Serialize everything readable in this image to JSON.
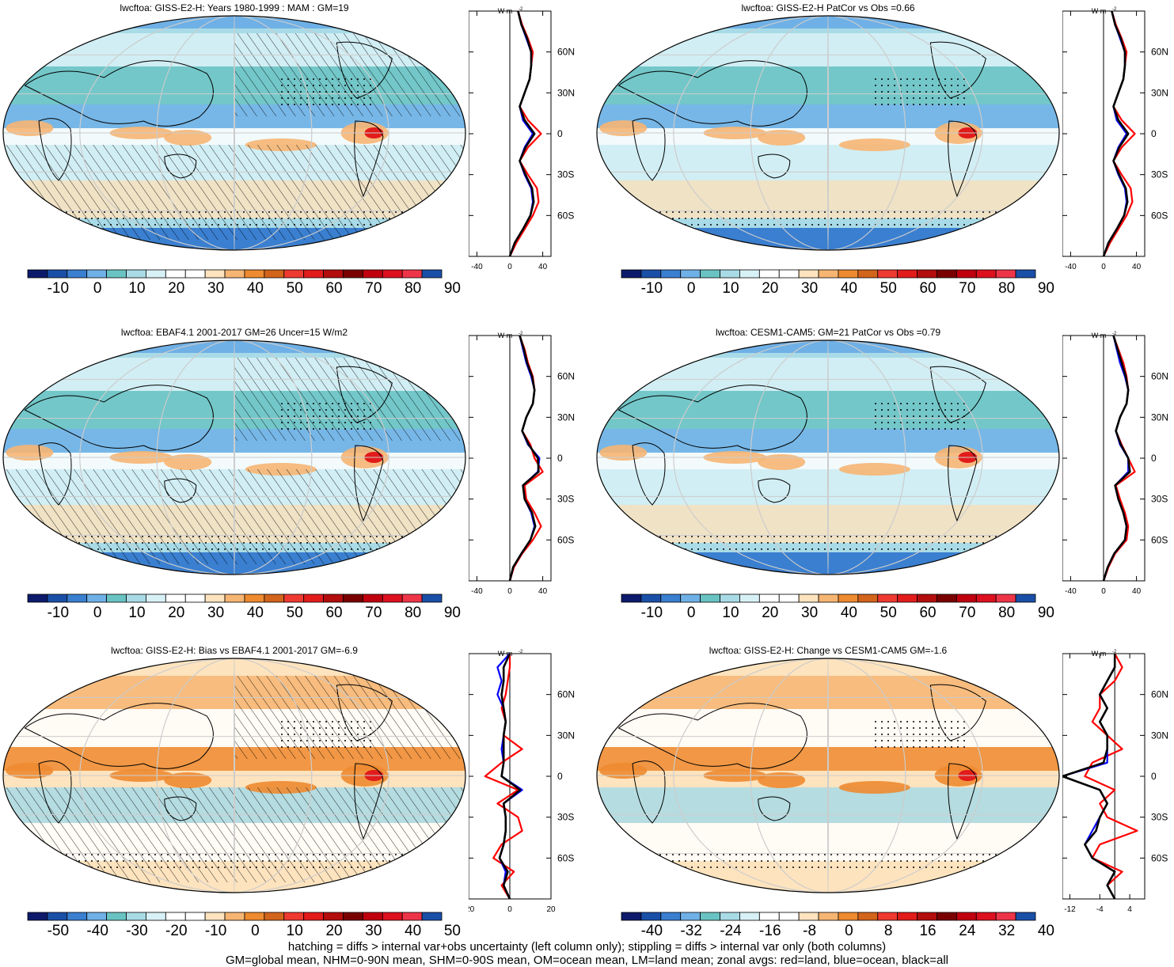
{
  "units_label": "W m",
  "units_exp": "-2",
  "panels": [
    {
      "id": "p1",
      "title": "lwcftoa: GISS-E2-H: Years 1980-1999 : MAM : GM=19",
      "colorbar_ticks": [
        "-10",
        "0",
        "10",
        "20",
        "30",
        "40",
        "50",
        "60",
        "70",
        "80",
        "90"
      ],
      "zonal_ticks": [
        "-40",
        "0",
        "40"
      ],
      "zonal_xlim": [
        -50,
        50
      ],
      "zonal_tick_values": [
        -40,
        0,
        40
      ]
    },
    {
      "id": "p2",
      "title": "lwcftoa: GISS-E2-H PatCor vs Obs =0.66",
      "colorbar_ticks": [
        "-10",
        "0",
        "10",
        "20",
        "30",
        "40",
        "50",
        "60",
        "70",
        "80",
        "90"
      ],
      "zonal_ticks": [
        "-40",
        "0",
        "40"
      ],
      "zonal_xlim": [
        -50,
        50
      ],
      "zonal_tick_values": [
        -40,
        0,
        40
      ]
    },
    {
      "id": "p3",
      "title": "lwcftoa: EBAF4.1 2001-2017 GM=26 Uncer=15 W/m2",
      "colorbar_ticks": [
        "-10",
        "0",
        "10",
        "20",
        "30",
        "40",
        "50",
        "60",
        "70",
        "80",
        "90"
      ],
      "zonal_ticks": [
        "-40",
        "0",
        "40"
      ],
      "zonal_xlim": [
        -50,
        50
      ],
      "zonal_tick_values": [
        -40,
        0,
        40
      ]
    },
    {
      "id": "p4",
      "title": "lwcftoa: CESM1-CAM5: GM=21 PatCor vs Obs =0.79",
      "colorbar_ticks": [
        "-10",
        "0",
        "10",
        "20",
        "30",
        "40",
        "50",
        "60",
        "70",
        "80",
        "90"
      ],
      "zonal_ticks": [
        "-40",
        "0",
        "40"
      ],
      "zonal_xlim": [
        -50,
        50
      ],
      "zonal_tick_values": [
        -40,
        0,
        40
      ]
    },
    {
      "id": "p5",
      "title": "lwcftoa: GISS-E2-H: Bias vs EBAF4.1 2001-2017 GM=-6.9",
      "colorbar_ticks": [
        "-50",
        "-40",
        "-30",
        "-20",
        "-10",
        "0",
        "10",
        "20",
        "30",
        "40",
        "50"
      ],
      "zonal_ticks": [
        "-20",
        "0",
        "20"
      ],
      "zonal_xlim": [
        -20,
        20
      ],
      "zonal_tick_values": [
        -20,
        0,
        20
      ]
    },
    {
      "id": "p6",
      "title": "lwcftoa: GISS-E2-H: Change vs CESM1-CAM5 GM=-1.6",
      "colorbar_ticks": [
        "-40",
        "-32",
        "-24",
        "-16",
        "-8",
        "0",
        "8",
        "16",
        "24",
        "32",
        "40"
      ],
      "zonal_ticks": [
        "-12",
        "-4",
        "4"
      ],
      "zonal_xlim": [
        -14,
        8
      ],
      "zonal_tick_values": [
        -12,
        -4,
        4
      ]
    }
  ],
  "lat_ticks": [
    "60N",
    "30N",
    "0",
    "30S",
    "60S"
  ],
  "colorbar_colors": [
    "#0d1a6b",
    "#1a4fa8",
    "#3a7fd0",
    "#6fb0e6",
    "#6ac3c3",
    "#a8dbe6",
    "#d8f1f6",
    "#ffffff",
    "#ffffff",
    "#fde3be",
    "#f6b573",
    "#ee8a30",
    "#d2641c",
    "#ef3a31",
    "#e21b1b",
    "#b30d0d",
    "#7a0000",
    "#c0000e",
    "#dd1020",
    "#ee3548",
    "#1a4fa8"
  ],
  "zonal_legend": {
    "red": "land",
    "blue": "ocean",
    "black": "all"
  },
  "captions": [
    "hatching = diffs > internal var+obs uncertainty (left column only); stippling = diffs > internal var only (both columns)",
    "GM=global mean, NHM=0-90N mean, SHM=0-90S mean, OM=ocean mean, LM=land mean; zonal avgs: red=land, blue=ocean, black=all"
  ],
  "chart_data": [
    {
      "type": "line",
      "panel": "p1",
      "ylabel_units": "W m-2",
      "lat": [
        -90,
        -80,
        -70,
        -60,
        -50,
        -40,
        -30,
        -20,
        -10,
        0,
        10,
        20,
        30,
        40,
        50,
        60,
        70,
        80,
        90
      ],
      "series": [
        {
          "name": "land",
          "color": "#ff0000",
          "values": [
            0,
            8,
            18,
            28,
            35,
            33,
            22,
            12,
            22,
            38,
            22,
            12,
            18,
            24,
            26,
            28,
            22,
            15,
            10
          ]
        },
        {
          "name": "ocean",
          "color": "#0000ff",
          "values": [
            0,
            6,
            16,
            25,
            28,
            26,
            18,
            12,
            18,
            28,
            16,
            12,
            18,
            24,
            26,
            26,
            20,
            14,
            10
          ]
        },
        {
          "name": "all",
          "color": "#000000",
          "values": [
            0,
            6,
            16,
            25,
            29,
            27,
            19,
            12,
            19,
            30,
            18,
            12,
            18,
            24,
            26,
            26,
            21,
            14,
            10
          ]
        }
      ]
    },
    {
      "type": "line",
      "panel": "p2",
      "ylabel_units": "W m-2",
      "lat": [
        -90,
        -80,
        -70,
        -60,
        -50,
        -40,
        -30,
        -20,
        -10,
        0,
        10,
        20,
        30,
        40,
        50,
        60,
        70,
        80,
        90
      ],
      "series": [
        {
          "name": "land",
          "color": "#ff0000",
          "values": [
            0,
            8,
            18,
            28,
            35,
            33,
            22,
            12,
            22,
            38,
            22,
            12,
            18,
            24,
            26,
            28,
            22,
            15,
            10
          ]
        },
        {
          "name": "ocean",
          "color": "#0000ff",
          "values": [
            0,
            6,
            16,
            25,
            28,
            26,
            18,
            12,
            18,
            28,
            16,
            12,
            18,
            24,
            26,
            26,
            20,
            14,
            10
          ]
        },
        {
          "name": "all",
          "color": "#000000",
          "values": [
            0,
            6,
            16,
            25,
            29,
            27,
            19,
            12,
            19,
            30,
            18,
            12,
            18,
            24,
            26,
            26,
            21,
            14,
            10
          ]
        }
      ]
    },
    {
      "type": "line",
      "panel": "p3",
      "ylabel_units": "W m-2",
      "lat": [
        -90,
        -80,
        -70,
        -60,
        -50,
        -40,
        -30,
        -20,
        -10,
        0,
        10,
        20,
        30,
        40,
        50,
        60,
        70,
        80,
        90
      ],
      "series": [
        {
          "name": "land",
          "color": "#ff0000",
          "values": [
            0,
            5,
            15,
            28,
            38,
            30,
            20,
            18,
            40,
            30,
            25,
            15,
            20,
            28,
            30,
            28,
            22,
            18,
            12
          ]
        },
        {
          "name": "ocean",
          "color": "#0000ff",
          "values": [
            0,
            4,
            14,
            25,
            30,
            26,
            18,
            16,
            34,
            36,
            22,
            15,
            20,
            28,
            30,
            26,
            20,
            16,
            12
          ]
        },
        {
          "name": "all",
          "color": "#000000",
          "values": [
            0,
            4,
            14,
            25,
            31,
            27,
            18,
            16,
            35,
            34,
            23,
            15,
            20,
            28,
            30,
            27,
            21,
            17,
            12
          ]
        }
      ]
    },
    {
      "type": "line",
      "panel": "p4",
      "ylabel_units": "W m-2",
      "lat": [
        -90,
        -80,
        -70,
        -60,
        -50,
        -40,
        -30,
        -20,
        -10,
        0,
        10,
        20,
        30,
        40,
        50,
        60,
        70,
        80,
        90
      ],
      "series": [
        {
          "name": "land",
          "color": "#ff0000",
          "values": [
            0,
            6,
            14,
            28,
            30,
            26,
            20,
            15,
            38,
            30,
            22,
            15,
            20,
            28,
            30,
            28,
            24,
            18,
            12
          ]
        },
        {
          "name": "ocean",
          "color": "#0000ff",
          "values": [
            0,
            5,
            13,
            26,
            28,
            24,
            18,
            14,
            30,
            30,
            20,
            15,
            20,
            28,
            30,
            26,
            20,
            16,
            12
          ]
        },
        {
          "name": "all",
          "color": "#000000",
          "values": [
            0,
            5,
            13,
            26,
            28,
            24,
            18,
            14,
            32,
            30,
            21,
            15,
            20,
            28,
            30,
            27,
            22,
            17,
            12
          ]
        }
      ]
    },
    {
      "type": "line",
      "panel": "p5",
      "ylabel_units": "W m-2",
      "lat": [
        -90,
        -80,
        -70,
        -60,
        -50,
        -40,
        -30,
        -20,
        -10,
        0,
        10,
        20,
        30,
        40,
        50,
        60,
        70,
        80,
        90
      ],
      "series": [
        {
          "name": "land",
          "color": "#ff0000",
          "values": [
            0,
            -4,
            2,
            -8,
            -4,
            6,
            4,
            -6,
            4,
            -12,
            -4,
            6,
            -3,
            -2,
            -4,
            -2,
            -1,
            0,
            0
          ]
        },
        {
          "name": "ocean",
          "color": "#0000ff",
          "values": [
            0,
            -3,
            -2,
            -5,
            -3,
            -2,
            -2,
            -3,
            6,
            -4,
            -3,
            -4,
            -3,
            -2,
            -3,
            -6,
            -4,
            -6,
            0
          ]
        },
        {
          "name": "all",
          "color": "#000000",
          "values": [
            0,
            -3,
            -1,
            -5,
            -3,
            -2,
            -2,
            -3,
            5,
            -4,
            -3,
            -3,
            -3,
            -2,
            -3,
            -4,
            -3,
            -3,
            0
          ]
        }
      ]
    },
    {
      "type": "line",
      "panel": "p6",
      "ylabel_units": "W m-2",
      "lat": [
        -90,
        -80,
        -70,
        -60,
        -50,
        -40,
        -30,
        -20,
        -10,
        0,
        10,
        20,
        30,
        40,
        50,
        60,
        70,
        80,
        90
      ],
      "series": [
        {
          "name": "land",
          "color": "#ff0000",
          "values": [
            0,
            -2,
            2,
            -6,
            -4,
            6,
            -2,
            -4,
            0,
            -8,
            -6,
            2,
            -2,
            -6,
            -4,
            -4,
            0,
            2,
            0
          ]
        },
        {
          "name": "ocean",
          "color": "#0000ff",
          "values": [
            0,
            -2,
            0,
            -6,
            -8,
            -6,
            -4,
            -2,
            -4,
            -14,
            -2,
            -2,
            -2,
            -4,
            -2,
            -4,
            -2,
            0,
            0
          ]
        },
        {
          "name": "all",
          "color": "#000000",
          "values": [
            0,
            -2,
            0,
            -6,
            -8,
            -5,
            -4,
            -2,
            -4,
            -14,
            -3,
            -2,
            -2,
            -4,
            -2,
            -4,
            -2,
            0,
            0
          ]
        }
      ]
    }
  ]
}
